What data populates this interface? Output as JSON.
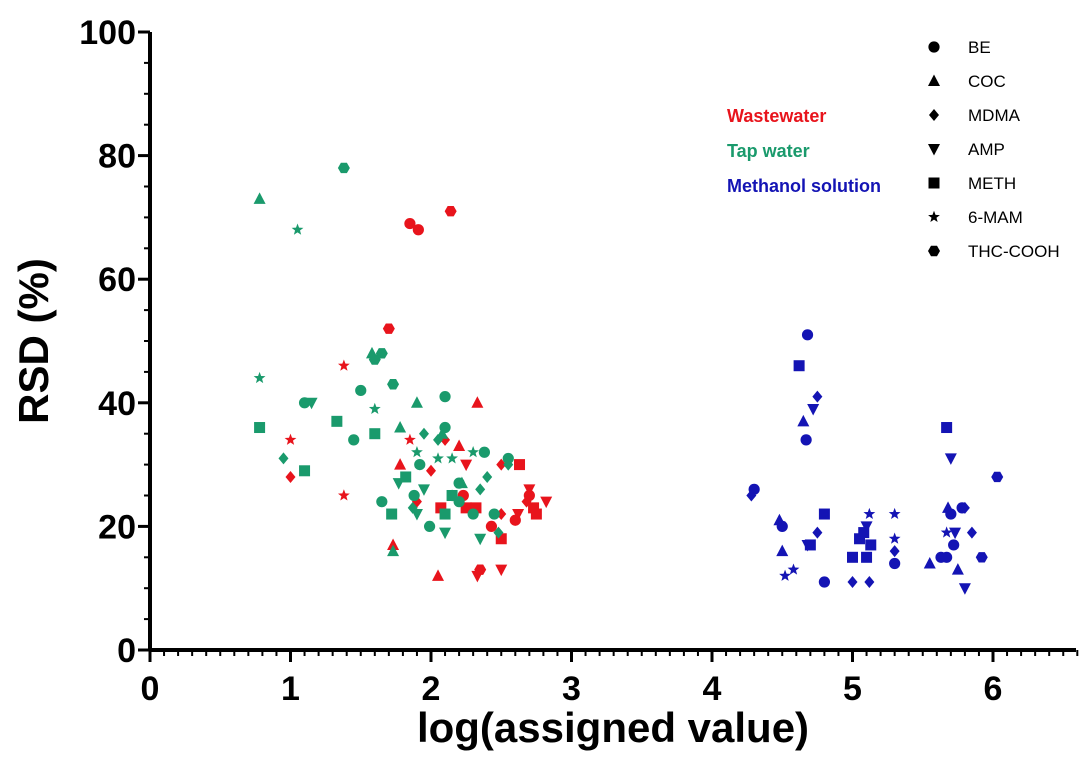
{
  "chart_data": {
    "type": "scatter",
    "title": "",
    "xlabel": "log(assigned value)",
    "ylabel": "RSD (%)",
    "xlim": [
      0,
      6.6
    ],
    "ylim": [
      0,
      100
    ],
    "x_ticks": [
      "0",
      "1",
      "2",
      "3",
      "4",
      "5",
      "6"
    ],
    "y_ticks": [
      "0",
      "20",
      "40",
      "60",
      "80",
      "100"
    ],
    "x_minor_tick_step": 0.1,
    "y_minor_tick_step": 5,
    "grid": false,
    "legend_position": "top-right",
    "marker_legend": [
      {
        "name": "BE",
        "marker": "circle"
      },
      {
        "name": "COC",
        "marker": "triangle-up"
      },
      {
        "name": "MDMA",
        "marker": "diamond"
      },
      {
        "name": "AMP",
        "marker": "triangle-down"
      },
      {
        "name": "METH",
        "marker": "square"
      },
      {
        "name": "6-MAM",
        "marker": "star"
      },
      {
        "name": "THC-COOH",
        "marker": "hexagon"
      }
    ],
    "matrix_groups": [
      {
        "name": "Wastewater",
        "color": "#e8141c"
      },
      {
        "name": "Tap water",
        "color": "#1a9a6c"
      },
      {
        "name": "Methanol solution",
        "color": "#1414b4"
      }
    ],
    "series": [
      {
        "matrix": "Wastewater",
        "compound": "BE",
        "points": [
          [
            1.85,
            69
          ],
          [
            1.91,
            68
          ],
          [
            2.23,
            25
          ],
          [
            2.43,
            20
          ],
          [
            2.6,
            21
          ],
          [
            2.7,
            25
          ]
        ]
      },
      {
        "matrix": "Wastewater",
        "compound": "COC",
        "points": [
          [
            1.73,
            17
          ],
          [
            2.05,
            12
          ],
          [
            2.2,
            33
          ],
          [
            2.33,
            40
          ],
          [
            1.78,
            30
          ]
        ]
      },
      {
        "matrix": "Wastewater",
        "compound": "MDMA",
        "points": [
          [
            1.0,
            28
          ],
          [
            1.9,
            24
          ],
          [
            2.0,
            29
          ],
          [
            2.1,
            34
          ],
          [
            2.5,
            22
          ],
          [
            2.5,
            30
          ],
          [
            2.68,
            24
          ]
        ]
      },
      {
        "matrix": "Wastewater",
        "compound": "AMP",
        "points": [
          [
            2.25,
            30
          ],
          [
            2.33,
            12
          ],
          [
            2.5,
            13
          ],
          [
            2.62,
            22
          ],
          [
            2.7,
            26
          ],
          [
            2.82,
            24
          ]
        ]
      },
      {
        "matrix": "Wastewater",
        "compound": "METH",
        "points": [
          [
            2.07,
            23
          ],
          [
            2.25,
            23
          ],
          [
            2.32,
            23
          ],
          [
            2.5,
            18
          ],
          [
            2.63,
            30
          ],
          [
            2.73,
            23
          ],
          [
            2.75,
            22
          ]
        ]
      },
      {
        "matrix": "Wastewater",
        "compound": "6-MAM",
        "points": [
          [
            1.0,
            34
          ],
          [
            1.38,
            46
          ],
          [
            1.38,
            25
          ],
          [
            1.85,
            34
          ]
        ]
      },
      {
        "matrix": "Wastewater",
        "compound": "THC-COOH",
        "points": [
          [
            1.7,
            52
          ],
          [
            2.14,
            71
          ],
          [
            2.35,
            13
          ]
        ]
      },
      {
        "matrix": "Tap water",
        "compound": "BE",
        "points": [
          [
            1.1,
            40
          ],
          [
            1.45,
            34
          ],
          [
            1.5,
            42
          ],
          [
            1.65,
            24
          ],
          [
            1.88,
            25
          ],
          [
            1.92,
            30
          ],
          [
            1.99,
            20
          ],
          [
            2.1,
            36
          ],
          [
            2.1,
            41
          ],
          [
            2.2,
            27
          ],
          [
            2.2,
            24
          ],
          [
            2.3,
            22
          ],
          [
            2.38,
            32
          ],
          [
            2.45,
            22
          ],
          [
            2.55,
            31
          ]
        ]
      },
      {
        "matrix": "Tap water",
        "compound": "COC",
        "points": [
          [
            0.78,
            73
          ],
          [
            1.58,
            48
          ],
          [
            1.73,
            16
          ],
          [
            1.78,
            36
          ],
          [
            1.9,
            40
          ],
          [
            2.08,
            35
          ],
          [
            2.22,
            27
          ]
        ]
      },
      {
        "matrix": "Tap water",
        "compound": "MDMA",
        "points": [
          [
            0.95,
            31
          ],
          [
            1.87,
            23
          ],
          [
            1.95,
            35
          ],
          [
            2.05,
            34
          ],
          [
            2.15,
            25
          ],
          [
            2.35,
            26
          ],
          [
            2.4,
            28
          ],
          [
            2.48,
            19
          ],
          [
            2.55,
            30
          ]
        ]
      },
      {
        "matrix": "Tap water",
        "compound": "AMP",
        "points": [
          [
            1.15,
            40
          ],
          [
            1.9,
            22
          ],
          [
            1.95,
            26
          ],
          [
            2.1,
            19
          ],
          [
            2.35,
            18
          ],
          [
            1.77,
            27
          ]
        ]
      },
      {
        "matrix": "Tap water",
        "compound": "METH",
        "points": [
          [
            0.78,
            36
          ],
          [
            1.1,
            29
          ],
          [
            1.33,
            37
          ],
          [
            1.6,
            35
          ],
          [
            1.72,
            22
          ],
          [
            1.82,
            28
          ],
          [
            2.1,
            22
          ],
          [
            2.15,
            25
          ]
        ]
      },
      {
        "matrix": "Tap water",
        "compound": "6-MAM",
        "points": [
          [
            0.78,
            44
          ],
          [
            1.05,
            68
          ],
          [
            1.6,
            39
          ],
          [
            1.9,
            32
          ],
          [
            2.05,
            31
          ],
          [
            2.15,
            31
          ],
          [
            2.3,
            32
          ]
        ]
      },
      {
        "matrix": "Tap water",
        "compound": "THC-COOH",
        "points": [
          [
            1.38,
            78
          ],
          [
            1.6,
            47
          ],
          [
            1.65,
            48
          ],
          [
            1.73,
            43
          ]
        ]
      },
      {
        "matrix": "Methanol solution",
        "compound": "BE",
        "points": [
          [
            4.3,
            26
          ],
          [
            4.5,
            20
          ],
          [
            4.67,
            34
          ],
          [
            4.68,
            51
          ],
          [
            4.8,
            11
          ],
          [
            5.3,
            14
          ],
          [
            5.63,
            15
          ],
          [
            5.67,
            15
          ],
          [
            5.7,
            22
          ],
          [
            5.72,
            17
          ],
          [
            5.78,
            23
          ]
        ]
      },
      {
        "matrix": "Methanol solution",
        "compound": "COC",
        "points": [
          [
            4.48,
            21
          ],
          [
            4.5,
            16
          ],
          [
            4.65,
            37
          ],
          [
            5.55,
            14
          ],
          [
            5.68,
            23
          ],
          [
            5.75,
            13
          ]
        ]
      },
      {
        "matrix": "Methanol solution",
        "compound": "MDMA",
        "points": [
          [
            4.28,
            25
          ],
          [
            4.75,
            41
          ],
          [
            4.75,
            19
          ],
          [
            5.0,
            11
          ],
          [
            5.12,
            11
          ],
          [
            5.3,
            16
          ],
          [
            5.8,
            23
          ],
          [
            5.85,
            19
          ]
        ]
      },
      {
        "matrix": "Methanol solution",
        "compound": "AMP",
        "points": [
          [
            4.68,
            17
          ],
          [
            4.72,
            39
          ],
          [
            5.1,
            20
          ],
          [
            5.7,
            31
          ],
          [
            5.73,
            19
          ],
          [
            5.8,
            10
          ]
        ]
      },
      {
        "matrix": "Methanol solution",
        "compound": "METH",
        "points": [
          [
            4.62,
            46
          ],
          [
            4.7,
            17
          ],
          [
            4.8,
            22
          ],
          [
            5.0,
            15
          ],
          [
            5.05,
            18
          ],
          [
            5.08,
            19
          ],
          [
            5.1,
            15
          ],
          [
            5.13,
            17
          ],
          [
            5.67,
            36
          ]
        ]
      },
      {
        "matrix": "Methanol solution",
        "compound": "6-MAM",
        "points": [
          [
            4.52,
            12
          ],
          [
            4.58,
            13
          ],
          [
            5.12,
            22
          ],
          [
            5.3,
            22
          ],
          [
            5.3,
            18
          ],
          [
            5.67,
            19
          ]
        ]
      },
      {
        "matrix": "Methanol solution",
        "compound": "THC-COOH",
        "points": [
          [
            6.03,
            28
          ],
          [
            5.92,
            15
          ]
        ]
      }
    ]
  }
}
